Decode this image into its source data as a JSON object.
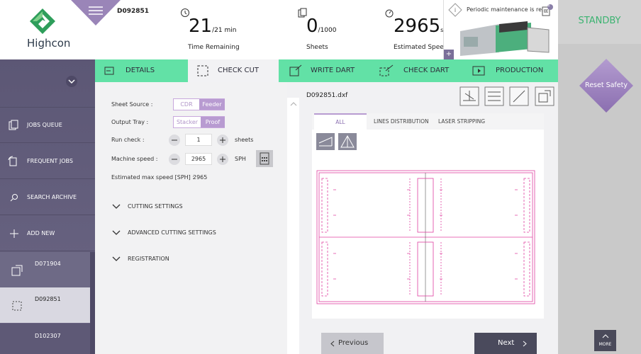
{
  "sidebar": {
    "brand": "Highcon",
    "menu": [
      "JOBS QUEUE",
      "FREQUENT JOBS",
      "SEARCH ARCHIVE",
      "ADD NEW"
    ],
    "jobs": [
      "D071904",
      "D092851",
      "D102307"
    ]
  },
  "header": {
    "job_id": "D092851",
    "stats": [
      {
        "value": "21",
        "unit": "/21 min",
        "label": "Time Remaining"
      },
      {
        "value": "0",
        "unit": "/1000",
        "label": "Sheets"
      },
      {
        "value": "2965",
        "unit": "s/h",
        "label": "Estimated Speed"
      }
    ],
    "notification": {
      "text": "Periodic maintenance is re...",
      "count": "1"
    }
  },
  "status": {
    "state": "STANDBY",
    "reset": "Reset Safety",
    "more": "MORE"
  },
  "tabs": [
    "DETAILS",
    "CHECK CUT",
    "WRITE DART",
    "CHECK DART",
    "PRODUCTION"
  ],
  "form": {
    "sheet_source": {
      "label": "Sheet Source :",
      "options": [
        "CDR",
        "Feeder"
      ]
    },
    "output_tray": {
      "label": "Output Tray :",
      "options": [
        "Stacker",
        "Proof"
      ]
    },
    "run_check": {
      "label": "Run check :",
      "value": "1",
      "unit": "sheets"
    },
    "machine_speed": {
      "label": "Machine speed :",
      "value": "2965",
      "unit": "SPH"
    },
    "max_speed": {
      "label": "Estimated max speed [SPH] :",
      "value": "2965"
    },
    "sections": [
      "CUTTING SETTINGS",
      "ADVANCED CUTTING SETTINGS",
      "REGISTRATION"
    ]
  },
  "viewer": {
    "file": "D092851.dxf",
    "tabs": [
      "ALL",
      "LINES DISTRIBUTION",
      "LASER STRIPPING"
    ],
    "previous": "Previous",
    "next": "Next"
  }
}
